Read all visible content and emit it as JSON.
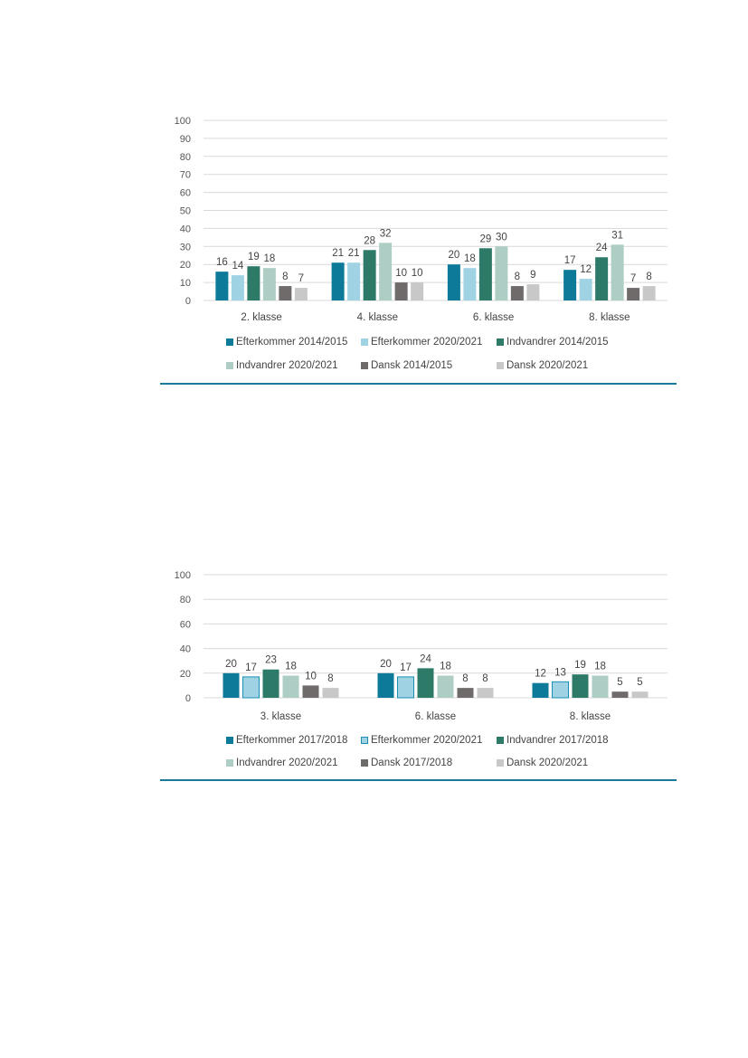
{
  "chart_data": [
    {
      "type": "bar",
      "title": "",
      "xlabel": "",
      "ylabel": "",
      "ylim": [
        0,
        100
      ],
      "yticks": [
        0,
        10,
        20,
        30,
        40,
        50,
        60,
        70,
        80,
        90,
        100
      ],
      "grid": true,
      "legend_position": "bottom",
      "categories": [
        "2. klasse",
        "4. klasse",
        "6. klasse",
        "8. klasse"
      ],
      "series": [
        {
          "name": "Efterkommer 2014/2015",
          "color": "#0d7a99",
          "values": [
            16,
            21,
            20,
            17
          ]
        },
        {
          "name": "Efterkommer 2020/2021",
          "color": "#9fd2e2",
          "values": [
            14,
            21,
            18,
            12
          ]
        },
        {
          "name": "Indvandrer 2014/2015",
          "color": "#2e7a68",
          "values": [
            19,
            28,
            29,
            24
          ]
        },
        {
          "name": "Indvandrer 2020/2021",
          "color": "#aecdc4",
          "values": [
            18,
            32,
            30,
            31
          ]
        },
        {
          "name": "Dansk 2014/2015",
          "color": "#6e6b6a",
          "values": [
            8,
            10,
            8,
            7
          ]
        },
        {
          "name": "Dansk 2020/2021",
          "color": "#c8c8c8",
          "values": [
            7,
            10,
            9,
            8
          ]
        }
      ]
    },
    {
      "type": "bar",
      "title": "",
      "xlabel": "",
      "ylabel": "",
      "ylim": [
        0,
        100
      ],
      "yticks": [
        0,
        20,
        40,
        60,
        80,
        100
      ],
      "grid": true,
      "legend_position": "bottom",
      "categories": [
        "3. klasse",
        "6. klasse",
        "8. klasse"
      ],
      "series": [
        {
          "name": "Efterkommer 2017/2018",
          "color": "#0d7a99",
          "values": [
            20,
            20,
            12
          ]
        },
        {
          "name": "Efterkommer 2020/2021",
          "color": "#9fd2e2",
          "stroke": "#1b8fb3",
          "values": [
            17,
            17,
            13
          ]
        },
        {
          "name": "Indvandrer 2017/2018",
          "color": "#2e7a68",
          "values": [
            23,
            24,
            19
          ]
        },
        {
          "name": "Indvandrer 2020/2021",
          "color": "#aecdc4",
          "values": [
            18,
            18,
            18
          ]
        },
        {
          "name": "Dansk 2017/2018",
          "color": "#6e6b6a",
          "values": [
            10,
            8,
            5
          ]
        },
        {
          "name": "Dansk 2020/2021",
          "color": "#c8c8c8",
          "values": [
            8,
            8,
            5
          ]
        }
      ]
    }
  ]
}
